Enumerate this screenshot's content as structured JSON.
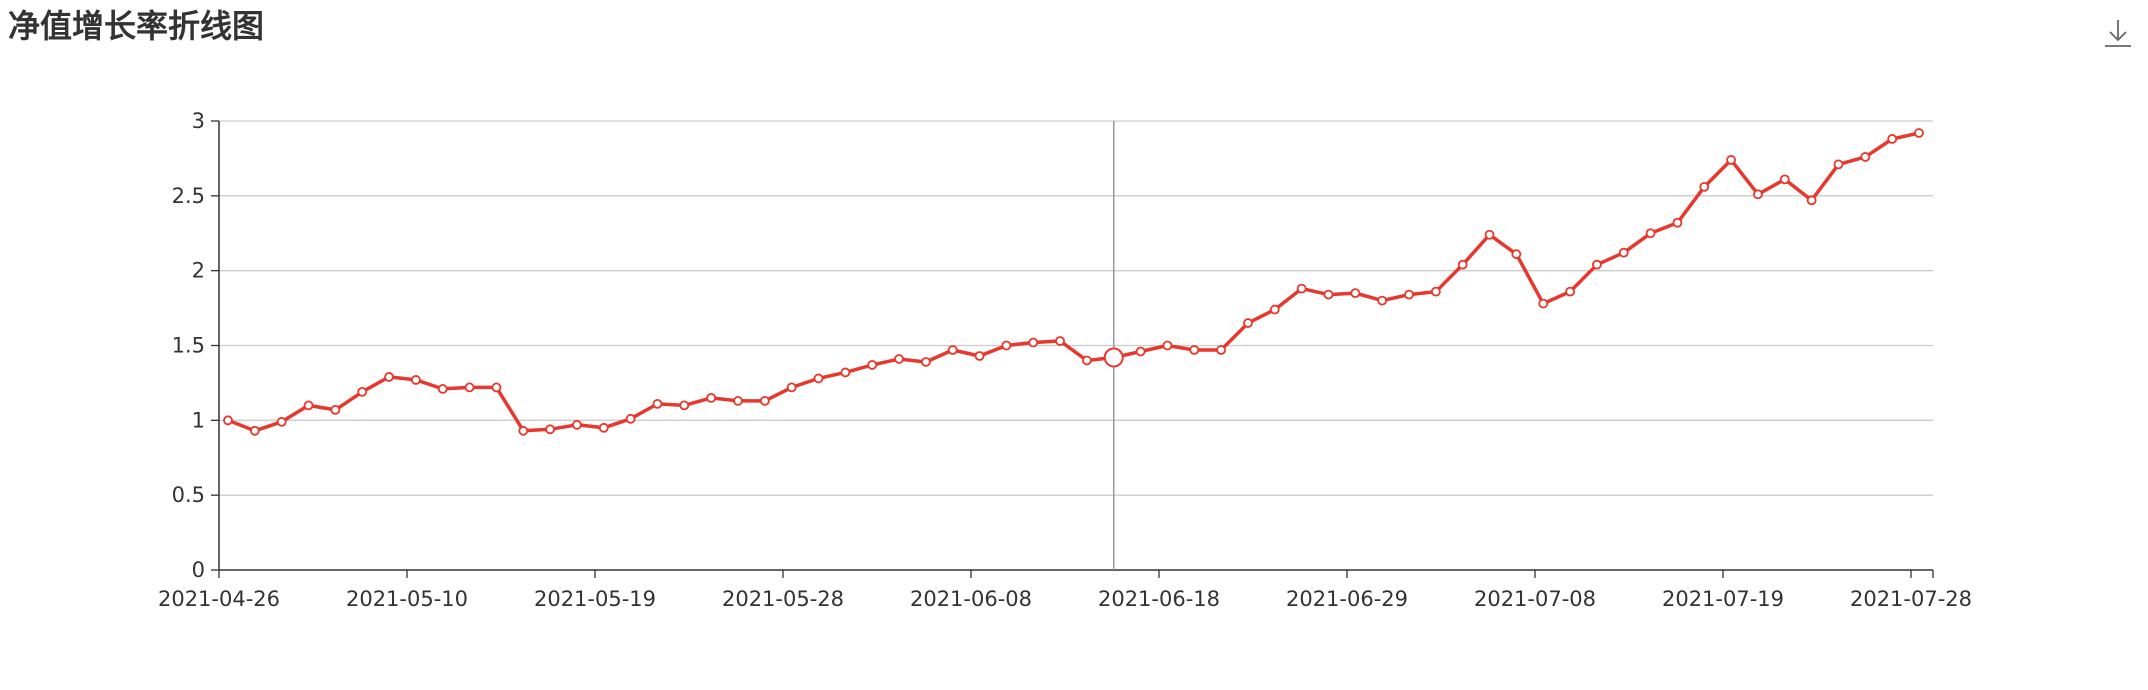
{
  "header": {
    "title": "净值增长率折线图",
    "download_icon": "download-icon"
  },
  "colors": {
    "line": "#e8372c",
    "axis": "#333333",
    "grid": "#cccccc",
    "crosshair": "#999999",
    "marker_fill": "#ffffff"
  },
  "chart_data": {
    "type": "line",
    "title": "净值增长率折线图",
    "xlabel": "",
    "ylabel": "",
    "ylim": [
      0,
      3
    ],
    "y_ticks": [
      "0",
      "0.5",
      "1",
      "1.5",
      "2",
      "2.5",
      "3"
    ],
    "x_tick_labels": [
      "2021-04-26",
      "2021-05-10",
      "2021-05-19",
      "2021-05-28",
      "2021-06-08",
      "2021-06-18",
      "2021-06-29",
      "2021-07-08",
      "2021-07-19",
      "2021-07-28"
    ],
    "grid": "horizontal",
    "legend": "none",
    "highlighted_index": 33,
    "series": [
      {
        "values": [
          1.0,
          0.93,
          0.99,
          1.1,
          1.07,
          1.19,
          1.29,
          1.27,
          1.21,
          1.22,
          1.22,
          0.93,
          0.94,
          0.97,
          0.95,
          1.01,
          1.11,
          1.1,
          1.15,
          1.13,
          1.13,
          1.22,
          1.28,
          1.32,
          1.37,
          1.41,
          1.39,
          1.47,
          1.43,
          1.5,
          1.52,
          1.53,
          1.4,
          1.42,
          1.46,
          1.5,
          1.47,
          1.47,
          1.65,
          1.74,
          1.88,
          1.84,
          1.85,
          1.8,
          1.84,
          1.86,
          2.04,
          2.24,
          2.11,
          1.78,
          1.86,
          2.04,
          2.12,
          2.25,
          2.32,
          2.56,
          2.74,
          2.51,
          2.61,
          2.47,
          2.71,
          2.76,
          2.88,
          2.92
        ]
      }
    ]
  }
}
